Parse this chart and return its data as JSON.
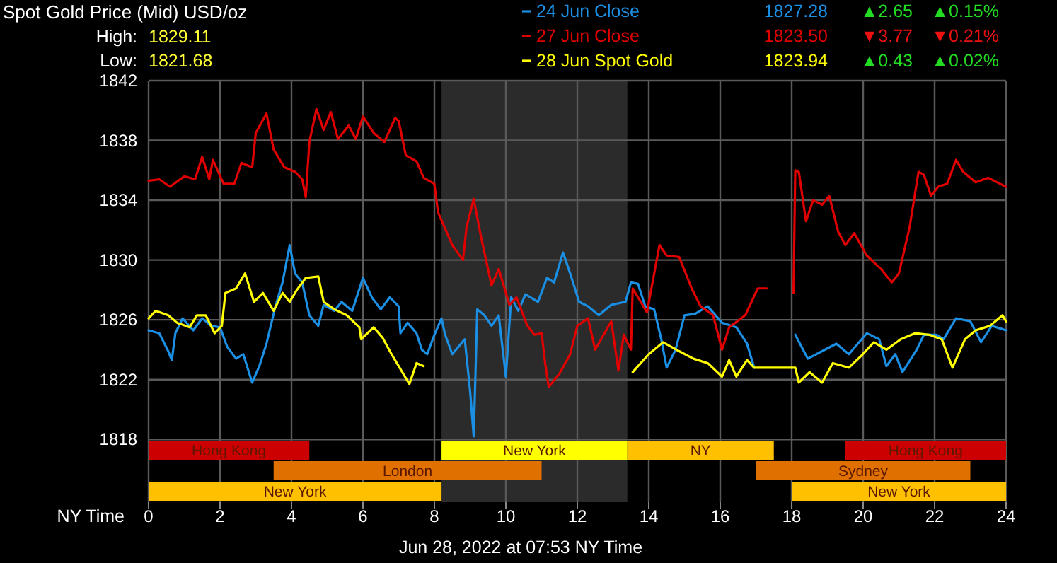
{
  "chart_data": {
    "type": "line",
    "title": "Spot Gold Price (Mid) USD/oz",
    "xlabel": "NY Time",
    "annotations": [
      "High:",
      "1829.11",
      "Low:",
      "1821.68",
      "1827.28",
      "▲2.65",
      "▲0.15%",
      "1823.50",
      "▼3.77",
      "▼0.21%",
      "1823.94",
      "▲0.43",
      "▲0.02%",
      "Jun 28, 2022 at 07:53 NY Time"
    ],
    "xlim": [
      0,
      24
    ],
    "xticks": [
      0,
      2,
      4,
      6,
      8,
      10,
      12,
      14,
      16,
      18,
      20,
      22,
      24
    ],
    "ylim": [
      1813.8,
      1842
    ],
    "yticks": [
      1818,
      1822,
      1826,
      1830,
      1834,
      1838,
      1842
    ],
    "grid": true,
    "legend": "top right",
    "line_style": "solid",
    "marker": "none",
    "bands": [
      {
        "axis": "x",
        "from": 8.2,
        "to": 13.4,
        "color": "#2b2b2b"
      },
      {
        "axis": "x",
        "from": 0,
        "to": 4.5,
        "label": "Hong Kong",
        "color": "#cc0000"
      },
      {
        "axis": "x",
        "from": 19.5,
        "to": 24,
        "label": "Hong Kong",
        "color": "#cc0000"
      },
      {
        "axis": "x",
        "from": 3.5,
        "to": 11,
        "label": "London",
        "color": "#e07000"
      },
      {
        "axis": "x",
        "from": 17,
        "to": 23,
        "label": "Sydney",
        "color": "#e07000"
      },
      {
        "axis": "x",
        "from": 0,
        "to": 8.2,
        "label": "New York",
        "color": "#ffc000"
      },
      {
        "axis": "x",
        "from": 8.2,
        "to": 13.4,
        "label": "New York",
        "color": "#ffff00"
      },
      {
        "axis": "x",
        "from": 13.4,
        "to": 17.5,
        "label": "NY",
        "color": "#ffc000"
      },
      {
        "axis": "x",
        "from": 18,
        "to": 24,
        "label": "New York",
        "color": "#ffc000"
      }
    ],
    "series": [
      {
        "name": "24 Jun Close",
        "color": "#1a8fe3",
        "x": [
          0,
          0.3,
          0.55,
          0.65,
          0.75,
          0.95,
          1.25,
          1.5,
          1.75,
          2.0,
          2.2,
          2.45,
          2.65,
          2.9,
          3.1,
          3.3,
          3.55,
          3.75,
          3.95,
          4.1,
          4.3,
          4.5,
          4.75,
          4.9,
          5.2,
          5.4,
          5.7,
          6.0,
          6.25,
          6.5,
          6.75,
          7.0,
          7.05,
          7.25,
          7.5,
          7.65,
          7.8,
          8.0,
          8.2,
          8.3,
          8.5,
          8.85,
          9.0,
          9.1,
          9.2,
          9.4,
          9.6,
          9.8,
          10.0,
          10.15,
          10.35,
          10.55,
          10.9,
          11.15,
          11.35,
          11.6,
          11.8,
          12.05,
          12.3,
          12.6,
          12.95,
          13.35,
          13.5,
          13.7,
          13.9,
          14.15,
          14.35,
          14.5,
          14.75,
          15.0,
          15.3,
          15.65,
          16.05,
          16.45,
          16.75,
          16.95,
          17.5,
          18.1,
          18.45,
          18.85,
          19.25,
          19.6,
          20.1,
          20.45,
          20.65,
          20.9,
          21.1,
          21.5,
          21.7,
          22.05,
          22.25,
          22.6,
          23.0,
          23.3,
          23.6,
          24
        ],
        "values": [
          1825.3,
          1825.1,
          1823.9,
          1823.3,
          1825.1,
          1826.1,
          1825.3,
          1826.1,
          1825.6,
          1825.5,
          1824.2,
          1823.4,
          1823.7,
          1821.8,
          1822.9,
          1824.4,
          1826.9,
          1828.5,
          1831.0,
          1829.1,
          1828.5,
          1826.3,
          1825.6,
          1827.0,
          1826.6,
          1827.2,
          1826.6,
          1828.8,
          1827.5,
          1826.7,
          1827.5,
          1826.9,
          1825.1,
          1825.8,
          1825.1,
          1824.0,
          1823.7,
          1825.0,
          1826.1,
          1825.0,
          1823.7,
          1824.7,
          1821.2,
          1818.2,
          1826.7,
          1826.3,
          1825.6,
          1826.3,
          1822.2,
          1827.5,
          1826.6,
          1827.7,
          1827.2,
          1828.8,
          1828.5,
          1830.5,
          1829.1,
          1827.2,
          1826.9,
          1826.3,
          1827.0,
          1827.2,
          1828.5,
          1828.4,
          1826.9,
          1826.7,
          1824.7,
          1822.8,
          1824.0,
          1826.3,
          1826.4,
          1826.9,
          1825.8,
          1825.5,
          1824.4,
          1822.8,
          null,
          1825.0,
          1823.4,
          1823.9,
          1824.4,
          1823.7,
          1825.1,
          1824.7,
          1822.9,
          1823.7,
          1822.5,
          1824.0,
          1825.0,
          1825.0,
          1824.7,
          1826.1,
          1825.9,
          1824.5,
          1825.6,
          1825.3
        ]
      },
      {
        "name": "27 Jun Close",
        "color": "#e00000",
        "x": [
          0,
          0.3,
          0.6,
          1.0,
          1.3,
          1.5,
          1.7,
          1.8,
          2.1,
          2.4,
          2.6,
          2.9,
          3.0,
          3.3,
          3.5,
          3.8,
          4.1,
          4.3,
          4.4,
          4.5,
          4.7,
          4.9,
          5.1,
          5.3,
          5.6,
          5.8,
          6.0,
          6.3,
          6.6,
          6.9,
          7.0,
          7.2,
          7.5,
          7.7,
          8.0,
          8.1,
          8.5,
          8.8,
          8.9,
          9.1,
          9.3,
          9.6,
          9.8,
          10.1,
          10.3,
          10.6,
          10.8,
          11.0,
          11.1,
          11.2,
          11.5,
          11.8,
          12.0,
          12.3,
          12.5,
          12.95,
          13.15,
          13.3,
          13.5,
          13.55,
          13.95,
          14.3,
          14.5,
          14.85,
          15.2,
          15.45,
          15.8,
          16.05,
          16.25,
          16.7,
          17.05,
          17.3,
          17.7,
          18.05,
          18.1,
          18.2,
          18.4,
          18.6,
          18.85,
          19.05,
          19.3,
          19.5,
          19.75,
          20.1,
          20.5,
          20.8,
          21.0,
          21.3,
          21.55,
          21.7,
          21.9,
          22.1,
          22.35,
          22.6,
          22.8,
          23.15,
          23.5,
          24
        ],
        "values": [
          1835.3,
          1835.4,
          1834.9,
          1835.6,
          1835.4,
          1836.9,
          1835.4,
          1836.7,
          1835.1,
          1835.1,
          1836.5,
          1836.2,
          1838.5,
          1839.8,
          1837.4,
          1836.2,
          1835.9,
          1835.4,
          1834.2,
          1837.9,
          1840.1,
          1838.7,
          1839.9,
          1838.1,
          1839.0,
          1838.1,
          1839.6,
          1838.5,
          1837.9,
          1839.5,
          1839.3,
          1837.0,
          1836.6,
          1835.5,
          1835.1,
          1833.2,
          1831.0,
          1830.0,
          1832.2,
          1834.1,
          1831.6,
          1828.3,
          1829.4,
          1827.0,
          1827.5,
          1825.6,
          1825.0,
          1825.1,
          1823.1,
          1821.5,
          1822.4,
          1823.7,
          1825.6,
          1826.1,
          1824.0,
          1825.9,
          1822.6,
          1825.0,
          1824.0,
          1828.1,
          1826.5,
          1831.0,
          1830.3,
          1830.2,
          1828.1,
          1826.9,
          1826.3,
          1824.0,
          1825.5,
          1826.3,
          1828.1,
          1828.1,
          null,
          1827.8,
          1836.0,
          1835.9,
          1832.6,
          1834.0,
          1833.7,
          1834.3,
          1831.9,
          1831.0,
          1831.8,
          1830.3,
          1829.4,
          1828.5,
          1829.1,
          1832.2,
          1835.9,
          1835.7,
          1834.3,
          1834.9,
          1835.1,
          1836.7,
          1835.9,
          1835.2,
          1835.5,
          1834.9
        ]
      },
      {
        "name": "28 Jun Spot Gold",
        "color": "#ffff00",
        "x": [
          0,
          0.2,
          0.55,
          0.8,
          1.15,
          1.35,
          1.6,
          1.85,
          2.05,
          2.15,
          2.45,
          2.7,
          2.95,
          3.2,
          3.5,
          3.75,
          3.95,
          4.15,
          4.4,
          4.75,
          4.9,
          5.2,
          5.55,
          5.9,
          5.95,
          6.3,
          6.55,
          6.8,
          7.0,
          7.3,
          7.5,
          7.7,
          10,
          13.55,
          14.0,
          14.4,
          14.85,
          15.25,
          15.65,
          16.05,
          16.25,
          16.45,
          16.75,
          16.95,
          18.1,
          18.2,
          18.5,
          18.85,
          19.15,
          19.6,
          19.95,
          20.3,
          20.65,
          21.05,
          21.45,
          21.85,
          22.2,
          22.5,
          22.85,
          23.15,
          23.55,
          23.9,
          24
        ],
        "values": [
          1826.1,
          1826.6,
          1826.3,
          1825.8,
          1825.5,
          1826.3,
          1826.3,
          1825.1,
          1825.6,
          1827.8,
          1828.1,
          1829.1,
          1827.2,
          1827.8,
          1826.6,
          1827.8,
          1827.2,
          1828.0,
          1828.8,
          1828.9,
          1827.2,
          1826.7,
          1826.3,
          1825.5,
          1824.7,
          1825.5,
          1824.8,
          1823.7,
          1822.9,
          1821.7,
          1823.1,
          1822.9,
          null,
          1822.5,
          1823.7,
          1824.5,
          1823.9,
          1823.4,
          1823.1,
          1822.2,
          1823.3,
          1822.2,
          1823.3,
          1822.8,
          1822.8,
          1821.8,
          1822.5,
          1821.8,
          1823.1,
          1822.8,
          1823.6,
          1824.5,
          1824.0,
          1824.7,
          1825.1,
          1825.0,
          1824.7,
          1822.8,
          1824.7,
          1825.3,
          1825.6,
          1826.3,
          1825.9
        ]
      }
    ]
  }
}
